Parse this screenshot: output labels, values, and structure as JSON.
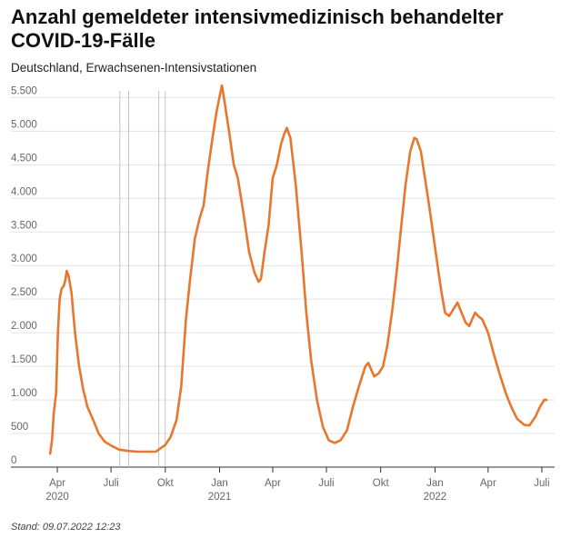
{
  "header": {
    "title": "Anzahl gemeldeter intensivmedizinisch behandelter COVID-19-Fälle",
    "subtitle": "Deutschland, Erwachsenen-Intensivstationen"
  },
  "footer": {
    "stand": "Stand: 09.07.2022 12:23"
  },
  "chart_data": {
    "type": "line",
    "title": "Anzahl gemeldeter intensivmedizinisch behandelter COVID-19-Fälle",
    "subtitle": "Deutschland, Erwachsenen-Intensivstationen",
    "xlabel": "",
    "ylabel": "",
    "ylim": [
      0,
      5600
    ],
    "xlim": [
      "2020-03-15",
      "2022-07-15"
    ],
    "grid": true,
    "line_color": "#e8772e",
    "y_ticks": [
      {
        "value": 0,
        "label": "0"
      },
      {
        "value": 500,
        "label": "500"
      },
      {
        "value": 1000,
        "label": "1.000"
      },
      {
        "value": 1500,
        "label": "1.500"
      },
      {
        "value": 2000,
        "label": "2.000"
      },
      {
        "value": 2500,
        "label": "2.500"
      },
      {
        "value": 3000,
        "label": "3.000"
      },
      {
        "value": 3500,
        "label": "3.500"
      },
      {
        "value": 4000,
        "label": "4.000"
      },
      {
        "value": 4500,
        "label": "4.500"
      },
      {
        "value": 5000,
        "label": "5.000"
      },
      {
        "value": 5500,
        "label": "5.500"
      }
    ],
    "x_ticks": [
      {
        "date": "2020-04-01",
        "label": "Apr",
        "sublabel": "2020"
      },
      {
        "date": "2020-07-01",
        "label": "Juli",
        "sublabel": ""
      },
      {
        "date": "2020-10-01",
        "label": "Okt",
        "sublabel": ""
      },
      {
        "date": "2021-01-01",
        "label": "Jan",
        "sublabel": "2021"
      },
      {
        "date": "2021-04-01",
        "label": "Apr",
        "sublabel": ""
      },
      {
        "date": "2021-07-01",
        "label": "Juli",
        "sublabel": ""
      },
      {
        "date": "2021-10-01",
        "label": "Okt",
        "sublabel": ""
      },
      {
        "date": "2022-01-01",
        "label": "Jan",
        "sublabel": "2022"
      },
      {
        "date": "2022-04-01",
        "label": "Apr",
        "sublabel": ""
      },
      {
        "date": "2022-07-01",
        "label": "Juli",
        "sublabel": ""
      }
    ],
    "reference_lines": [
      "2020-07-16",
      "2020-07-31",
      "2020-09-20",
      "2020-10-01"
    ],
    "series": [
      {
        "points": [
          [
            "2020-03-20",
            200
          ],
          [
            "2020-03-23",
            400
          ],
          [
            "2020-03-26",
            800
          ],
          [
            "2020-03-30",
            1100
          ],
          [
            "2020-04-02",
            2000
          ],
          [
            "2020-04-05",
            2500
          ],
          [
            "2020-04-08",
            2650
          ],
          [
            "2020-04-12",
            2700
          ],
          [
            "2020-04-15",
            2800
          ],
          [
            "2020-04-17",
            2920
          ],
          [
            "2020-04-20",
            2850
          ],
          [
            "2020-04-25",
            2600
          ],
          [
            "2020-05-01",
            2000
          ],
          [
            "2020-05-08",
            1500
          ],
          [
            "2020-05-15",
            1150
          ],
          [
            "2020-05-22",
            900
          ],
          [
            "2020-06-01",
            700
          ],
          [
            "2020-06-10",
            500
          ],
          [
            "2020-06-20",
            380
          ],
          [
            "2020-07-01",
            320
          ],
          [
            "2020-07-15",
            260
          ],
          [
            "2020-08-01",
            240
          ],
          [
            "2020-08-15",
            230
          ],
          [
            "2020-09-01",
            230
          ],
          [
            "2020-09-15",
            230
          ],
          [
            "2020-10-01",
            330
          ],
          [
            "2020-10-10",
            450
          ],
          [
            "2020-10-20",
            700
          ],
          [
            "2020-10-28",
            1200
          ],
          [
            "2020-11-05",
            2200
          ],
          [
            "2020-11-12",
            2800
          ],
          [
            "2020-11-20",
            3400
          ],
          [
            "2020-11-28",
            3700
          ],
          [
            "2020-12-05",
            3900
          ],
          [
            "2020-12-12",
            4400
          ],
          [
            "2020-12-20",
            4900
          ],
          [
            "2020-12-27",
            5300
          ],
          [
            "2021-01-03",
            5600
          ],
          [
            "2021-01-05",
            5680
          ],
          [
            "2021-01-10",
            5400
          ],
          [
            "2021-01-17",
            5000
          ],
          [
            "2021-01-25",
            4500
          ],
          [
            "2021-02-01",
            4300
          ],
          [
            "2021-02-10",
            3800
          ],
          [
            "2021-02-20",
            3200
          ],
          [
            "2021-03-01",
            2900
          ],
          [
            "2021-03-08",
            2760
          ],
          [
            "2021-03-12",
            2800
          ],
          [
            "2021-03-18",
            3200
          ],
          [
            "2021-03-25",
            3600
          ],
          [
            "2021-04-01",
            4300
          ],
          [
            "2021-04-08",
            4500
          ],
          [
            "2021-04-15",
            4800
          ],
          [
            "2021-04-20",
            4950
          ],
          [
            "2021-04-25",
            5050
          ],
          [
            "2021-05-01",
            4900
          ],
          [
            "2021-05-10",
            4200
          ],
          [
            "2021-05-20",
            3200
          ],
          [
            "2021-05-28",
            2300
          ],
          [
            "2021-06-05",
            1600
          ],
          [
            "2021-06-15",
            1000
          ],
          [
            "2021-06-25",
            600
          ],
          [
            "2021-07-05",
            400
          ],
          [
            "2021-07-15",
            360
          ],
          [
            "2021-07-25",
            400
          ],
          [
            "2021-08-05",
            550
          ],
          [
            "2021-08-15",
            900
          ],
          [
            "2021-08-25",
            1200
          ],
          [
            "2021-09-05",
            1500
          ],
          [
            "2021-09-10",
            1550
          ],
          [
            "2021-09-15",
            1450
          ],
          [
            "2021-09-20",
            1350
          ],
          [
            "2021-09-28",
            1400
          ],
          [
            "2021-10-05",
            1500
          ],
          [
            "2021-10-12",
            1800
          ],
          [
            "2021-10-20",
            2300
          ],
          [
            "2021-10-28",
            2900
          ],
          [
            "2021-11-05",
            3600
          ],
          [
            "2021-11-12",
            4200
          ],
          [
            "2021-11-20",
            4700
          ],
          [
            "2021-11-27",
            4900
          ],
          [
            "2021-12-01",
            4880
          ],
          [
            "2021-12-08",
            4700
          ],
          [
            "2021-12-15",
            4300
          ],
          [
            "2021-12-22",
            3900
          ],
          [
            "2021-12-30",
            3400
          ],
          [
            "2022-01-07",
            2900
          ],
          [
            "2022-01-12",
            2600
          ],
          [
            "2022-01-18",
            2300
          ],
          [
            "2022-01-25",
            2250
          ],
          [
            "2022-02-01",
            2350
          ],
          [
            "2022-02-08",
            2450
          ],
          [
            "2022-02-15",
            2300
          ],
          [
            "2022-02-22",
            2150
          ],
          [
            "2022-02-28",
            2100
          ],
          [
            "2022-03-05",
            2200
          ],
          [
            "2022-03-10",
            2300
          ],
          [
            "2022-03-15",
            2250
          ],
          [
            "2022-03-22",
            2200
          ],
          [
            "2022-04-01",
            2000
          ],
          [
            "2022-04-10",
            1700
          ],
          [
            "2022-04-20",
            1400
          ],
          [
            "2022-05-01",
            1100
          ],
          [
            "2022-05-10",
            900
          ],
          [
            "2022-05-20",
            720
          ],
          [
            "2022-06-01",
            630
          ],
          [
            "2022-06-10",
            620
          ],
          [
            "2022-06-20",
            750
          ],
          [
            "2022-06-28",
            900
          ],
          [
            "2022-07-05",
            1000
          ],
          [
            "2022-07-09",
            1000
          ]
        ]
      }
    ]
  }
}
